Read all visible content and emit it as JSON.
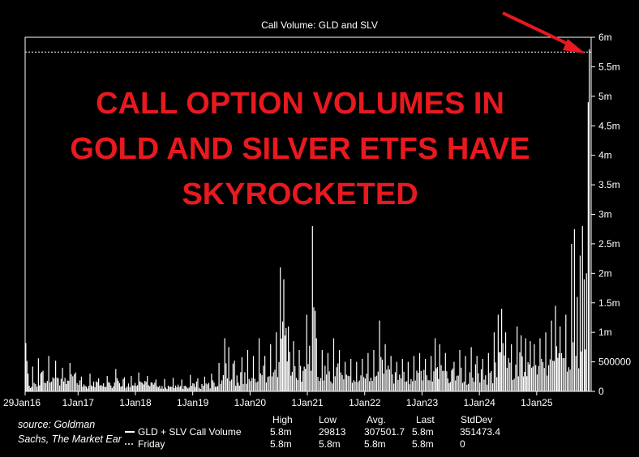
{
  "chart_data": {
    "type": "bar",
    "title": "Call Volume: GLD and SLV",
    "headline": [
      "CALL OPTION VOLUMES IN",
      "GOLD AND SILVER ETFS HAVE",
      "SKYROCKETED"
    ],
    "ylim": [
      0,
      6000000
    ],
    "y_ticks": [
      {
        "value": 0,
        "label": "0"
      },
      {
        "value": 500000,
        "label": "500000"
      },
      {
        "value": 1000000,
        "label": "1m"
      },
      {
        "value": 1500000,
        "label": "1.5m"
      },
      {
        "value": 2000000,
        "label": "2m"
      },
      {
        "value": 2500000,
        "label": "2.5m"
      },
      {
        "value": 3000000,
        "label": "3m"
      },
      {
        "value": 3500000,
        "label": "3.5m"
      },
      {
        "value": 4000000,
        "label": "4m"
      },
      {
        "value": 4500000,
        "label": "4.5m"
      },
      {
        "value": 5000000,
        "label": "5m"
      },
      {
        "value": 5500000,
        "label": "5.5m"
      },
      {
        "value": 6000000,
        "label": "6m"
      }
    ],
    "xlim": [
      2016.0767,
      2025.95
    ],
    "x_ticks": [
      {
        "value": 2016.0767,
        "label": "29Jan16"
      },
      {
        "value": 2017.0,
        "label": "1Jan17"
      },
      {
        "value": 2018.0,
        "label": "1Jan18"
      },
      {
        "value": 2019.0,
        "label": "1Jan19"
      },
      {
        "value": 2020.0,
        "label": "1Jan20"
      },
      {
        "value": 2021.0,
        "label": "1Jan21"
      },
      {
        "value": 2022.0,
        "label": "1Jan22"
      },
      {
        "value": 2023.0,
        "label": "1Jan23"
      },
      {
        "value": 2024.0,
        "label": "1Jan24"
      },
      {
        "value": 2025.0,
        "label": "1Jan25"
      }
    ],
    "series": [
      {
        "name": "GLD + SLV Call Volume",
        "color": "#ffffff",
        "style": "bars",
        "points": [
          [
            2016.08,
            820000
          ],
          [
            2016.12,
            300000
          ],
          [
            2016.2,
            420000
          ],
          [
            2016.3,
            560000
          ],
          [
            2016.38,
            350000
          ],
          [
            2016.48,
            600000
          ],
          [
            2016.6,
            520000
          ],
          [
            2016.72,
            400000
          ],
          [
            2016.85,
            480000
          ],
          [
            2016.95,
            320000
          ],
          [
            2017.05,
            250000
          ],
          [
            2017.2,
            300000
          ],
          [
            2017.35,
            220000
          ],
          [
            2017.5,
            260000
          ],
          [
            2017.65,
            380000
          ],
          [
            2017.8,
            240000
          ],
          [
            2017.92,
            260000
          ],
          [
            2018.05,
            320000
          ],
          [
            2018.2,
            260000
          ],
          [
            2018.35,
            200000
          ],
          [
            2018.5,
            210000
          ],
          [
            2018.65,
            230000
          ],
          [
            2018.8,
            200000
          ],
          [
            2018.95,
            280000
          ],
          [
            2019.08,
            220000
          ],
          [
            2019.2,
            250000
          ],
          [
            2019.32,
            300000
          ],
          [
            2019.45,
            480000
          ],
          [
            2019.55,
            900000
          ],
          [
            2019.62,
            750000
          ],
          [
            2019.72,
            520000
          ],
          [
            2019.85,
            580000
          ],
          [
            2019.95,
            700000
          ],
          [
            2020.05,
            600000
          ],
          [
            2020.15,
            900000
          ],
          [
            2020.25,
            600000
          ],
          [
            2020.35,
            800000
          ],
          [
            2020.45,
            1000000
          ],
          [
            2020.52,
            2100000
          ],
          [
            2020.58,
            1900000
          ],
          [
            2020.66,
            1100000
          ],
          [
            2020.75,
            850000
          ],
          [
            2020.85,
            700000
          ],
          [
            2020.98,
            1300000
          ],
          [
            2021.08,
            2800000
          ],
          [
            2021.15,
            900000
          ],
          [
            2021.25,
            700000
          ],
          [
            2021.35,
            650000
          ],
          [
            2021.45,
            900000
          ],
          [
            2021.55,
            700000
          ],
          [
            2021.65,
            500000
          ],
          [
            2021.75,
            550000
          ],
          [
            2021.85,
            500000
          ],
          [
            2021.95,
            550000
          ],
          [
            2022.05,
            650000
          ],
          [
            2022.15,
            700000
          ],
          [
            2022.25,
            1200000
          ],
          [
            2022.35,
            800000
          ],
          [
            2022.45,
            600000
          ],
          [
            2022.55,
            500000
          ],
          [
            2022.65,
            550000
          ],
          [
            2022.75,
            500000
          ],
          [
            2022.85,
            600000
          ],
          [
            2022.95,
            650000
          ],
          [
            2023.05,
            550000
          ],
          [
            2023.15,
            600000
          ],
          [
            2023.22,
            900000
          ],
          [
            2023.3,
            800000
          ],
          [
            2023.4,
            650000
          ],
          [
            2023.55,
            500000
          ],
          [
            2023.65,
            700000
          ],
          [
            2023.75,
            600000
          ],
          [
            2023.85,
            750000
          ],
          [
            2023.95,
            600000
          ],
          [
            2024.05,
            550000
          ],
          [
            2024.15,
            650000
          ],
          [
            2024.25,
            1000000
          ],
          [
            2024.32,
            1300000
          ],
          [
            2024.38,
            1400000
          ],
          [
            2024.45,
            1000000
          ],
          [
            2024.55,
            800000
          ],
          [
            2024.65,
            1100000
          ],
          [
            2024.72,
            950000
          ],
          [
            2024.8,
            900000
          ],
          [
            2024.88,
            850000
          ],
          [
            2024.95,
            800000
          ],
          [
            2025.05,
            900000
          ],
          [
            2025.15,
            1000000
          ],
          [
            2025.25,
            1200000
          ],
          [
            2025.32,
            1450000
          ],
          [
            2025.4,
            1100000
          ],
          [
            2025.5,
            1300000
          ],
          [
            2025.6,
            2500000
          ],
          [
            2025.65,
            2750000
          ],
          [
            2025.7,
            1600000
          ],
          [
            2025.75,
            2300000
          ],
          [
            2025.79,
            2800000
          ],
          [
            2025.82,
            1900000
          ],
          [
            2025.86,
            2000000
          ],
          [
            2025.89,
            4900000
          ],
          [
            2025.91,
            5800000
          ]
        ]
      },
      {
        "name": "Friday",
        "color": "#ffffff",
        "style": "dotted-line",
        "value": 5750000
      }
    ],
    "stats": {
      "headers": [
        "High",
        "Low",
        "Avg.",
        "Last",
        "StdDev"
      ],
      "rows": [
        {
          "label": "GLD + SLV Call Volume",
          "values": [
            "5.8m",
            "29813",
            "307501.7",
            "5.8m",
            "351473.4"
          ]
        },
        {
          "label": "Friday",
          "values": [
            "5.8m",
            "5.8m",
            "5.8m",
            "5.8m",
            "0"
          ]
        }
      ]
    },
    "source": [
      "source: Goldman",
      "Sachs, The Market Ear"
    ],
    "arrow_color": "#e8191f"
  }
}
